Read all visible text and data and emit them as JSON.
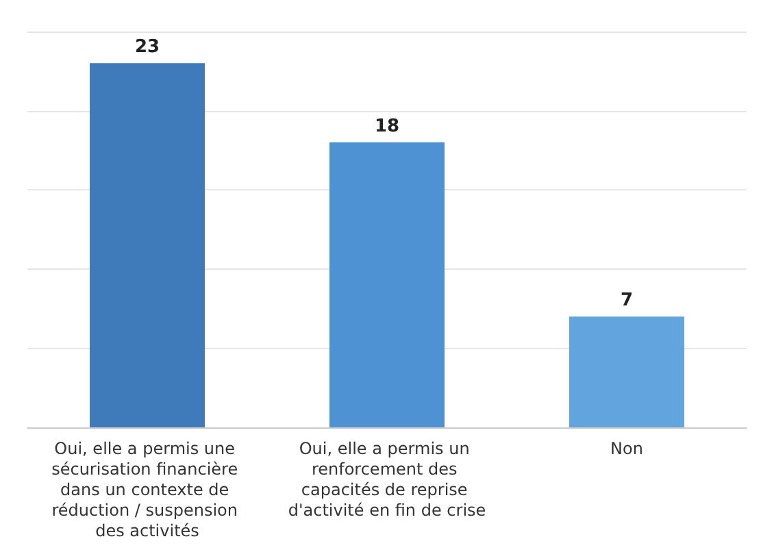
{
  "chart_data": {
    "type": "bar",
    "categories": [
      "Oui, elle a permis une sécurisation financière dans un contexte de réduction / suspension des activités",
      "Oui, elle a permis un renforcement des capacités de reprise d'activité en fin de crise",
      "Non"
    ],
    "values": [
      23,
      18,
      7
    ],
    "colors": [
      "#3f7abb",
      "#4f92d3",
      "#62a4dd"
    ],
    "ylim": [
      0,
      25
    ],
    "yticks": [
      {
        "value": 0,
        "label": null
      },
      {
        "value": 5,
        "label": null
      },
      {
        "value": 10,
        "label": null
      },
      {
        "value": 15,
        "label": null
      },
      {
        "value": 20,
        "label": null
      },
      {
        "value": 25,
        "label": null
      }
    ],
    "grid": "y",
    "tick_labels": "x",
    "data_labels": true
  }
}
